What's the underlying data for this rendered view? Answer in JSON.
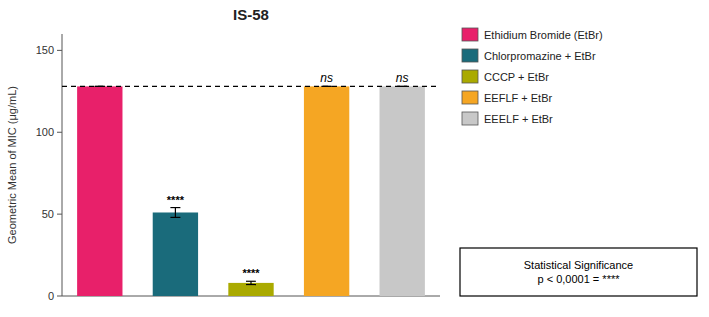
{
  "chart_data": {
    "type": "bar",
    "title": "IS-58",
    "ylabel": "Geometric Mean of MIC (μg/mL)",
    "categories": [
      "EtBr",
      "Chlorpromazine",
      "CCCP",
      "EEFLF",
      "EEELF"
    ],
    "values": [
      128,
      51,
      8,
      128,
      128
    ],
    "errors": [
      0,
      3,
      1,
      0,
      0
    ],
    "colors": [
      "#E8206A",
      "#1A6B7B",
      "#AAAA00",
      "#F5A623",
      "#C8C8C8"
    ],
    "ylim": [
      0,
      160
    ],
    "yticks": [
      0,
      50,
      100,
      150
    ],
    "tick_labels": "y",
    "grid": false,
    "legend": "right",
    "legend_labels": [
      "Ethidium Bromide (EtBr)",
      "Chlorpromazine + EtBr",
      "CCCP + EtBr",
      "EEFLF + EtBr",
      "EEELF + EtBr"
    ],
    "reference_line": 128,
    "significance_labels": [
      null,
      "****",
      "****",
      "ns",
      "ns"
    ],
    "stat_box_text": "Statistical Significance\np < 0,0001 = ****"
  }
}
